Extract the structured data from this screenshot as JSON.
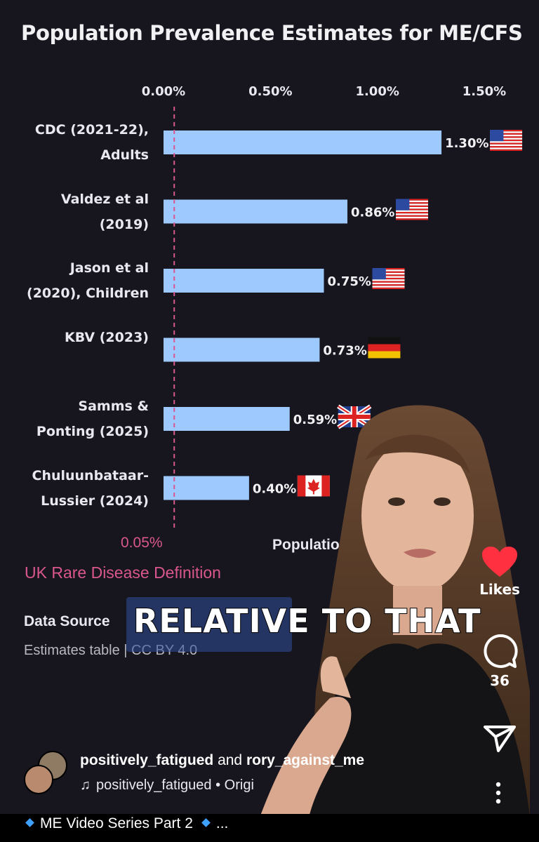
{
  "chart_data": {
    "type": "bar",
    "title": "Population Prevalence Estimates for ME/CFS",
    "orientation": "horizontal",
    "categories": [
      "CDC (2021-22),\nAdults",
      "Valdez et al\n(2019)",
      "Jason et al\n(2020), Children",
      "KBV (2023)",
      "Samms &\nPonting (2025)",
      "Chuluunbataar-\nLussier (2024)"
    ],
    "values": [
      1.3,
      0.86,
      0.75,
      0.73,
      0.59,
      0.4
    ],
    "value_labels": [
      "1.30%",
      "0.86%",
      "0.75%",
      "0.73%",
      "0.59%",
      "0.40%"
    ],
    "flags": [
      "us",
      "us",
      "us",
      "de",
      "gb",
      "ca"
    ],
    "xlim": [
      0,
      1.5
    ],
    "xticks": [
      0,
      0.5,
      1.0,
      1.5
    ],
    "xtick_labels": [
      "0.00%",
      "0.50%",
      "1.00%",
      "1.50%"
    ],
    "xlabel": "Populatio",
    "reference_line": {
      "value": 0.05,
      "label": "0.05%",
      "description": "UK Rare Disease Definition",
      "color": "#d9578e"
    },
    "bar_color": "#9ec9ff",
    "grid": false
  },
  "source": {
    "title": "Data Source",
    "text": "Estimates table | CC BY 4.0"
  },
  "video_caption": "RELATIVE TO THAT",
  "actions": {
    "likes_label": "Likes",
    "comments_count": "36",
    "like_icon_color": "#ff3040"
  },
  "post": {
    "author1": "positively_fatigued",
    "joiner": "and",
    "author2": "rory_against_me",
    "audio": "positively_fatigued • Origi",
    "caption": "ME Video Series Part 2",
    "ellipsis": "..."
  }
}
